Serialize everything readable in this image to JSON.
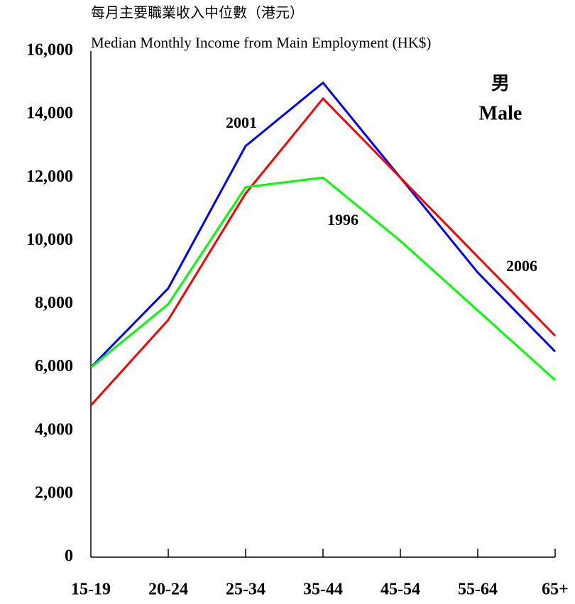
{
  "chart_data": {
    "type": "line",
    "title": "每月主要職業收入中位數（港元）",
    "subtitle": "Median Monthly Income from Main Employment (HK$)",
    "annotation": [
      "男",
      "Male"
    ],
    "categories": [
      "15-19",
      "20-24",
      "25-34",
      "35-44",
      "45-54",
      "55-64",
      "65+"
    ],
    "series": [
      {
        "name": "2001",
        "color": "#0000ff",
        "values": [
          6000,
          8500,
          13000,
          15000,
          12000,
          9000,
          6500
        ]
      },
      {
        "name": "2006",
        "color": "#ff0000",
        "values": [
          4800,
          7500,
          11500,
          14500,
          12000,
          9500,
          7000
        ]
      },
      {
        "name": "1996",
        "color": "#00ff00",
        "values": [
          6000,
          8000,
          11700,
          12000,
          10000,
          7800,
          5600
        ]
      }
    ],
    "ylim": [
      0,
      16000
    ],
    "yticks": [
      0,
      {
        "value": 2000,
        "label": "2,000"
      },
      {
        "value": 4000,
        "label": "4,000"
      },
      {
        "value": 6000,
        "label": "6,000"
      },
      {
        "value": 8000,
        "label": "8,000"
      },
      {
        "value": 10000,
        "label": "10,000"
      },
      {
        "value": 12000,
        "label": "12,000"
      },
      {
        "value": 14000,
        "label": "14,000"
      },
      {
        "value": 16000,
        "label": "16,000"
      }
    ],
    "grid": false
  }
}
